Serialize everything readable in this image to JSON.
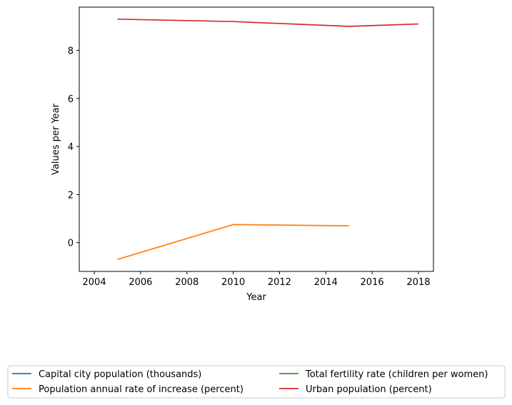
{
  "chart_data": {
    "type": "line",
    "title": "",
    "xlabel": "Year",
    "ylabel": "Values per Year",
    "xlim": [
      2003.35,
      2018.65
    ],
    "ylim": [
      -1.2,
      9.8
    ],
    "xticks": [
      2004,
      2006,
      2008,
      2010,
      2012,
      2014,
      2016,
      2018
    ],
    "yticks": [
      0,
      2,
      4,
      6,
      8
    ],
    "grid": false,
    "legend_position": "bottom-center",
    "series": [
      {
        "name": "Capital city population (thousands)",
        "color": "#1f77b4",
        "points": []
      },
      {
        "name": "Population annual rate of increase (percent)",
        "color": "#ff7f0e",
        "points": [
          [
            2005,
            -0.7
          ],
          [
            2010,
            0.75
          ],
          [
            2015,
            0.7
          ]
        ]
      },
      {
        "name": "Total fertility rate (children per women)",
        "color": "#2ca02c",
        "points": []
      },
      {
        "name": "Urban population (percent)",
        "color": "#d62728",
        "points": [
          [
            2005,
            9.3
          ],
          [
            2010,
            9.2
          ],
          [
            2015,
            9.0
          ],
          [
            2018,
            9.1
          ]
        ]
      }
    ]
  }
}
